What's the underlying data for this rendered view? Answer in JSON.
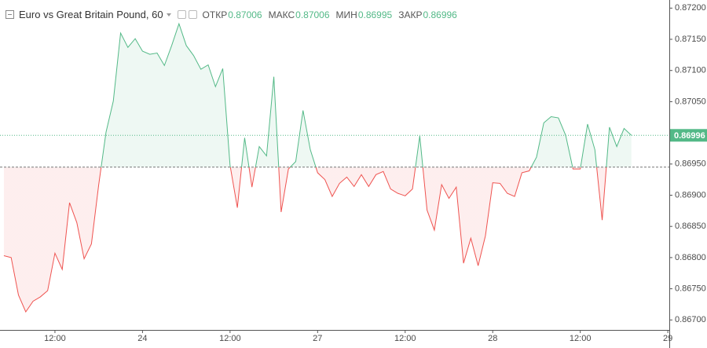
{
  "chart_data": {
    "type": "baseline",
    "title": "Euro vs Great Britain Pound, 60",
    "ohlc": [
      {
        "label": "ОТКР",
        "value": 0.87006
      },
      {
        "label": "МАКС",
        "value": 0.87006
      },
      {
        "label": "МИН",
        "value": 0.86995
      },
      {
        "label": "ЗАКР",
        "value": 0.86996
      }
    ],
    "x": [
      -7,
      -6,
      -5,
      -4,
      -3,
      -2,
      -1,
      0,
      1,
      2,
      3,
      4,
      5,
      6,
      7,
      8,
      9,
      10,
      11,
      12,
      13,
      14,
      15,
      16,
      17,
      18,
      19,
      20,
      21,
      22,
      23,
      24,
      25,
      26,
      27,
      28,
      29,
      30,
      31,
      32,
      33,
      34,
      35,
      36,
      37,
      38,
      39,
      40,
      41,
      42,
      43,
      44,
      45,
      46,
      47,
      48,
      49,
      50,
      51,
      52,
      53,
      54,
      55,
      56,
      57,
      58,
      59,
      60,
      61,
      62,
      63,
      64,
      65,
      66,
      67,
      68,
      69,
      70,
      71,
      72,
      73,
      74,
      75,
      76,
      77,
      78,
      79
    ],
    "values": [
      0.86803,
      0.868,
      0.8674,
      0.86713,
      0.8673,
      0.86737,
      0.86747,
      0.86807,
      0.86781,
      0.86888,
      0.86856,
      0.86798,
      0.86822,
      0.86917,
      0.87001,
      0.87051,
      0.8716,
      0.87137,
      0.87151,
      0.87131,
      0.87126,
      0.87128,
      0.87108,
      0.8714,
      0.87175,
      0.8714,
      0.87124,
      0.87102,
      0.87109,
      0.87074,
      0.87103,
      0.86948,
      0.8688,
      0.86992,
      0.86913,
      0.86978,
      0.86963,
      0.8709,
      0.86873,
      0.86942,
      0.86954,
      0.87036,
      0.86973,
      0.86936,
      0.86925,
      0.86898,
      0.86919,
      0.86929,
      0.86914,
      0.86933,
      0.86914,
      0.86933,
      0.86938,
      0.8691,
      0.86903,
      0.86899,
      0.8691,
      0.86995,
      0.86876,
      0.86844,
      0.86917,
      0.86895,
      0.86913,
      0.86791,
      0.86831,
      0.86787,
      0.86835,
      0.8692,
      0.86919,
      0.86903,
      0.86898,
      0.86936,
      0.86939,
      0.86961,
      0.87016,
      0.87026,
      0.87024,
      0.86996,
      0.86942,
      0.86942,
      0.87014,
      0.86973,
      0.8686,
      0.87009,
      0.86978,
      0.87007,
      0.86996
    ],
    "baseline": 0.86945,
    "last_price": 0.86996,
    "colors": {
      "above": "#53b987",
      "below": "#ef5350"
    },
    "xlim": [
      -7.53,
      84.2
    ],
    "ylim": [
      0.86684,
      0.87213
    ],
    "xticks": [
      {
        "value": 0,
        "label": "12:00"
      },
      {
        "value": 12,
        "label": "24"
      },
      {
        "value": 24,
        "label": "12:00"
      },
      {
        "value": 36,
        "label": "27"
      },
      {
        "value": 48,
        "label": "12:00"
      },
      {
        "value": 60,
        "label": "28"
      },
      {
        "value": 72,
        "label": "12:00"
      },
      {
        "value": 84,
        "label": "29"
      }
    ],
    "yticks": [
      {
        "value": 0.867,
        "label": "0.86700"
      },
      {
        "value": 0.8675,
        "label": "0.86750"
      },
      {
        "value": 0.868,
        "label": "0.86800"
      },
      {
        "value": 0.8685,
        "label": "0.86850"
      },
      {
        "value": 0.869,
        "label": "0.86900"
      },
      {
        "value": 0.8695,
        "label": "0.86950"
      },
      {
        "value": 0.87,
        "label": "0.87000"
      },
      {
        "value": 0.8705,
        "label": "0.87050"
      },
      {
        "value": 0.871,
        "label": "0.87100"
      },
      {
        "value": 0.8715,
        "label": "0.87150"
      },
      {
        "value": 0.872,
        "label": "0.87200"
      }
    ]
  }
}
